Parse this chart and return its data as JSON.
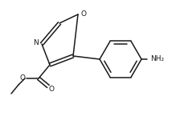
{
  "background_color": "#ffffff",
  "line_color": "#1a1a1a",
  "line_width": 1.1,
  "figsize": [
    2.14,
    1.5
  ],
  "dpi": 100,
  "nh2_label": "NH₂",
  "o_label_ring": "O",
  "n_label": "N",
  "o_carbonyl": "O",
  "o_ester": "O"
}
